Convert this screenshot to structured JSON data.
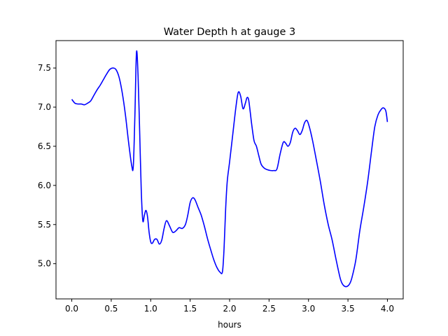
{
  "chart_data": {
    "type": "line",
    "title": "Water Depth h at gauge 3",
    "xlabel": "hours",
    "ylabel": "",
    "xlim": [
      -0.2,
      4.2
    ],
    "ylim": [
      4.55,
      7.85
    ],
    "xticks": [
      0.0,
      0.5,
      1.0,
      1.5,
      2.0,
      2.5,
      3.0,
      3.5,
      4.0
    ],
    "xtick_labels": [
      "0.0",
      "0.5",
      "1.0",
      "1.5",
      "2.0",
      "2.5",
      "3.0",
      "3.5",
      "4.0"
    ],
    "yticks": [
      5.0,
      5.5,
      6.0,
      6.5,
      7.0,
      7.5
    ],
    "ytick_labels": [
      "5.0",
      "5.5",
      "6.0",
      "6.5",
      "7.0",
      "7.5"
    ],
    "grid": false,
    "series": [
      {
        "color": "#0000ff",
        "x": [
          0.0,
          0.04,
          0.08,
          0.12,
          0.16,
          0.2,
          0.24,
          0.28,
          0.32,
          0.36,
          0.4,
          0.44,
          0.48,
          0.52,
          0.56,
          0.6,
          0.64,
          0.68,
          0.72,
          0.76,
          0.78,
          0.8,
          0.82,
          0.84,
          0.86,
          0.88,
          0.9,
          0.92,
          0.94,
          0.96,
          0.98,
          1.0,
          1.02,
          1.05,
          1.08,
          1.11,
          1.14,
          1.17,
          1.2,
          1.24,
          1.28,
          1.32,
          1.36,
          1.4,
          1.44,
          1.47,
          1.5,
          1.53,
          1.56,
          1.6,
          1.64,
          1.68,
          1.72,
          1.76,
          1.8,
          1.84,
          1.88,
          1.91,
          1.93,
          1.95,
          1.97,
          2.0,
          2.04,
          2.08,
          2.11,
          2.14,
          2.17,
          2.2,
          2.22,
          2.24,
          2.26,
          2.28,
          2.31,
          2.34,
          2.37,
          2.4,
          2.44,
          2.48,
          2.52,
          2.56,
          2.6,
          2.64,
          2.68,
          2.71,
          2.74,
          2.77,
          2.8,
          2.83,
          2.86,
          2.89,
          2.92,
          2.95,
          2.98,
          3.01,
          3.05,
          3.1,
          3.15,
          3.2,
          3.25,
          3.3,
          3.35,
          3.4,
          3.43,
          3.46,
          3.49,
          3.52,
          3.55,
          3.6,
          3.65,
          3.7,
          3.75,
          3.8,
          3.84,
          3.88,
          3.92,
          3.95,
          3.98,
          4.0
        ],
        "y": [
          7.1,
          7.05,
          7.04,
          7.04,
          7.03,
          7.05,
          7.08,
          7.15,
          7.22,
          7.28,
          7.35,
          7.42,
          7.48,
          7.5,
          7.48,
          7.38,
          7.18,
          6.9,
          6.55,
          6.25,
          6.25,
          6.9,
          7.7,
          7.4,
          6.7,
          5.95,
          5.55,
          5.62,
          5.68,
          5.6,
          5.4,
          5.28,
          5.26,
          5.31,
          5.31,
          5.25,
          5.3,
          5.45,
          5.55,
          5.48,
          5.4,
          5.42,
          5.46,
          5.45,
          5.5,
          5.62,
          5.78,
          5.84,
          5.82,
          5.72,
          5.62,
          5.48,
          5.32,
          5.18,
          5.05,
          4.95,
          4.89,
          4.9,
          5.2,
          5.7,
          6.05,
          6.3,
          6.65,
          7.0,
          7.19,
          7.14,
          6.98,
          7.05,
          7.12,
          7.1,
          6.95,
          6.78,
          6.57,
          6.5,
          6.38,
          6.27,
          6.22,
          6.2,
          6.19,
          6.19,
          6.21,
          6.4,
          6.55,
          6.54,
          6.5,
          6.55,
          6.68,
          6.73,
          6.7,
          6.65,
          6.7,
          6.8,
          6.83,
          6.75,
          6.58,
          6.32,
          6.05,
          5.75,
          5.5,
          5.3,
          5.05,
          4.82,
          4.74,
          4.71,
          4.71,
          4.74,
          4.82,
          5.05,
          5.42,
          5.72,
          6.05,
          6.45,
          6.75,
          6.9,
          6.97,
          6.99,
          6.95,
          6.81
        ]
      }
    ]
  }
}
